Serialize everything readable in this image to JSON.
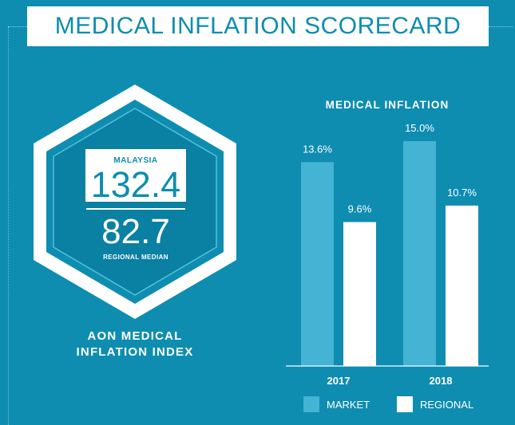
{
  "header": {
    "title": "MEDICAL INFLATION SCORECARD"
  },
  "index": {
    "country": "MALAYSIA",
    "country_value": "132.4",
    "median_value": "82.7",
    "median_label": "REGIONAL MEDIAN",
    "caption_line1": "AON MEDICAL",
    "caption_line2": "INFLATION INDEX"
  },
  "colors": {
    "background": "#0e8db0",
    "market": "#45b3d3",
    "regional": "#ffffff"
  },
  "chart_data": {
    "type": "bar",
    "title": "MEDICAL INFLATION",
    "categories": [
      "2017",
      "2018"
    ],
    "series": [
      {
        "name": "MARKET",
        "values": [
          13.6,
          15.0
        ],
        "labels": [
          "13.6%",
          "15.0%"
        ]
      },
      {
        "name": "REGIONAL",
        "values": [
          9.6,
          10.7
        ],
        "labels": [
          "9.6%",
          "10.7%"
        ]
      }
    ],
    "ylim": [
      0,
      16
    ],
    "legend": "bottom"
  }
}
